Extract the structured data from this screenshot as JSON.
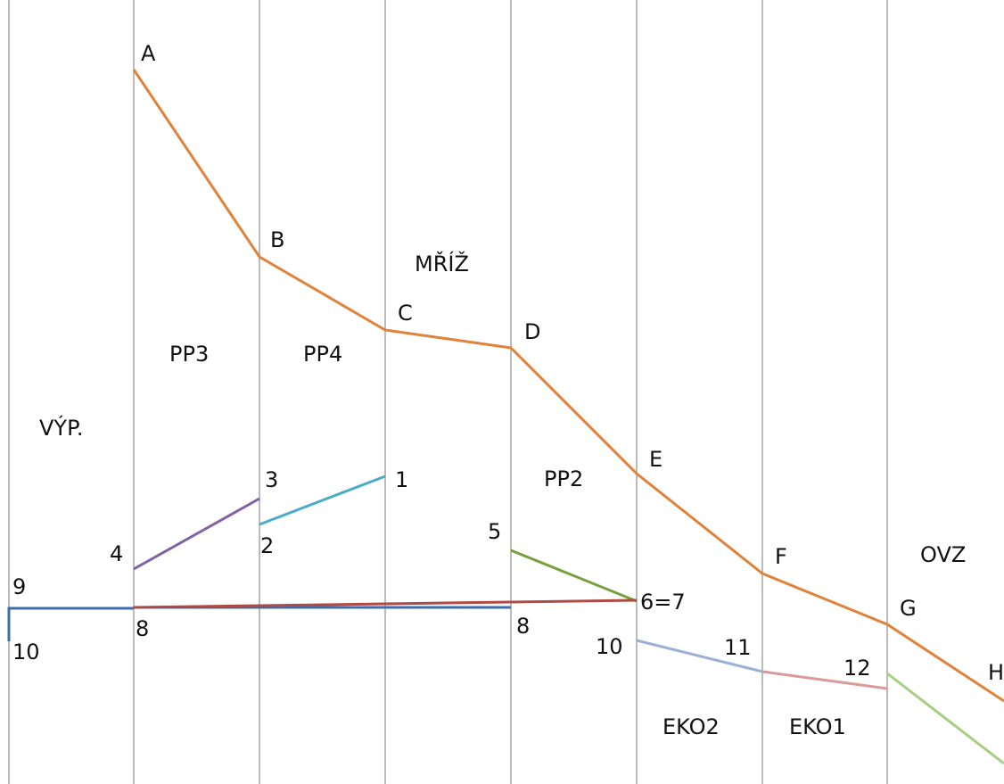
{
  "diagram": {
    "colors": {
      "background": "#ffffff",
      "grid_line": "#a6a6a6",
      "main_curve": "#e0823a",
      "purple_segment": "#8064a2",
      "teal_segment": "#4bacc6",
      "green_segment": "#76a03c",
      "red_segment": "#b04a46",
      "blue_segment": "#3e6db0",
      "light_blue_segment": "#9bb0d8",
      "pink_segment": "#d99a9a",
      "light_green_segment": "#a8cf84"
    },
    "zone_labels": {
      "vyp": "VÝP.",
      "pp3": "PP3",
      "pp4": "PP4",
      "mriz": "MŘÍŽ",
      "pp2": "PP2",
      "eko2": "EKO2",
      "eko1": "EKO1",
      "ovz": "OVZ"
    },
    "point_labels": {
      "a": "A",
      "b": "B",
      "c": "C",
      "d": "D",
      "e": "E",
      "f": "F",
      "g": "G",
      "h": "H",
      "p1": "1",
      "p2": "2",
      "p3": "3",
      "p4": "4",
      "p5": "5",
      "p6_7": "6=7",
      "p8_left": "8",
      "p8_right": "8",
      "p9": "9",
      "p10_left": "10",
      "p10_right": "10",
      "p11": "11",
      "p12": "12"
    }
  }
}
